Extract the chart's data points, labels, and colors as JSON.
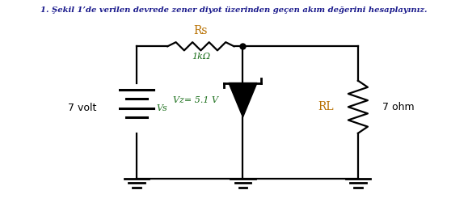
{
  "title": "1. Şekil 1’de verilen devrede zener diyot üzerinden geçen akım değerini hesaplayınız.",
  "bg_color": "#ffffff",
  "line_color": "#000000",
  "text_color": "#000000",
  "title_color": "#1a1a8c",
  "vs_label": "Vs",
  "volt_label": "7 volt",
  "rs_label": "Rs",
  "rs_value": "1kΩ",
  "vz_label": "Vz= 5.1 V",
  "rl_label": "RL",
  "ohm_label": "7 ohm",
  "fig_width": 5.79,
  "fig_height": 2.56,
  "dpi": 100
}
